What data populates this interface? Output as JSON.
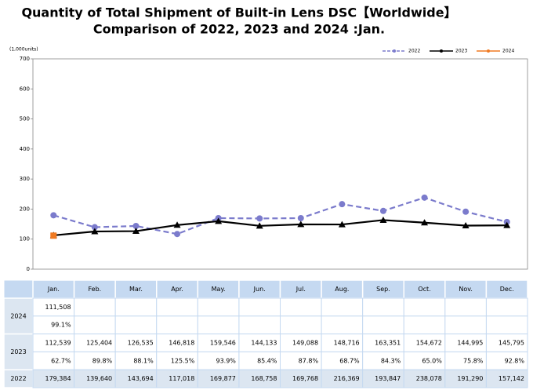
{
  "chart_data": {
    "type": "line",
    "title": "Quantity of Total Shipment of Built-in Lens DSC【Worldwide】",
    "subtitle": "Comparison of 2022, 2023 and 2024 :Jan.",
    "y_label": "(1,000units)",
    "categories": [
      "Jan.",
      "Feb.",
      "Mar.",
      "Apr.",
      "May.",
      "Jun.",
      "Jul.",
      "Aug.",
      "Sep.",
      "Oct.",
      "Nov.",
      "Dec."
    ],
    "ylim": [
      0,
      700
    ],
    "yticks": [
      0,
      100,
      200,
      300,
      400,
      500,
      600,
      700
    ],
    "legend": "top-right",
    "series": [
      {
        "name": "2022",
        "color": "#7b7bcc",
        "dashed": true,
        "marker": "circle",
        "values": [
          179.384,
          139.64,
          143.694,
          117.018,
          169.877,
          168.758,
          169.768,
          216.369,
          193.847,
          238.078,
          191.29,
          157.142
        ]
      },
      {
        "name": "2023",
        "color": "#000000",
        "dashed": false,
        "marker": "triangle",
        "values": [
          112.539,
          125.404,
          126.535,
          146.818,
          159.546,
          144.133,
          149.088,
          148.716,
          163.351,
          154.672,
          144.995,
          145.795
        ]
      },
      {
        "name": "2024",
        "color": "#f07a22",
        "dashed": false,
        "marker": "square",
        "values": [
          111.508,
          null,
          null,
          null,
          null,
          null,
          null,
          null,
          null,
          null,
          null,
          null
        ]
      }
    ]
  },
  "table": {
    "rows": [
      {
        "label": "2024",
        "values": [
          "111,508"
        ],
        "ratios": [
          "99.1%"
        ]
      },
      {
        "label": "2023",
        "values": [
          "112,539",
          "125,404",
          "126,535",
          "146,818",
          "159,546",
          "144,133",
          "149,088",
          "148,716",
          "163,351",
          "154,672",
          "144,995",
          "145,795"
        ],
        "ratios": [
          "62.7%",
          "89.8%",
          "88.1%",
          "125.5%",
          "93.9%",
          "85.4%",
          "87.8%",
          "68.7%",
          "84.3%",
          "65.0%",
          "75.8%",
          "92.8%"
        ]
      },
      {
        "label": "2022",
        "values": [
          "179,384",
          "139,640",
          "143,694",
          "117,018",
          "169,877",
          "168,758",
          "169,768",
          "216,369",
          "193,847",
          "238,078",
          "191,290",
          "157,142"
        ]
      }
    ]
  }
}
